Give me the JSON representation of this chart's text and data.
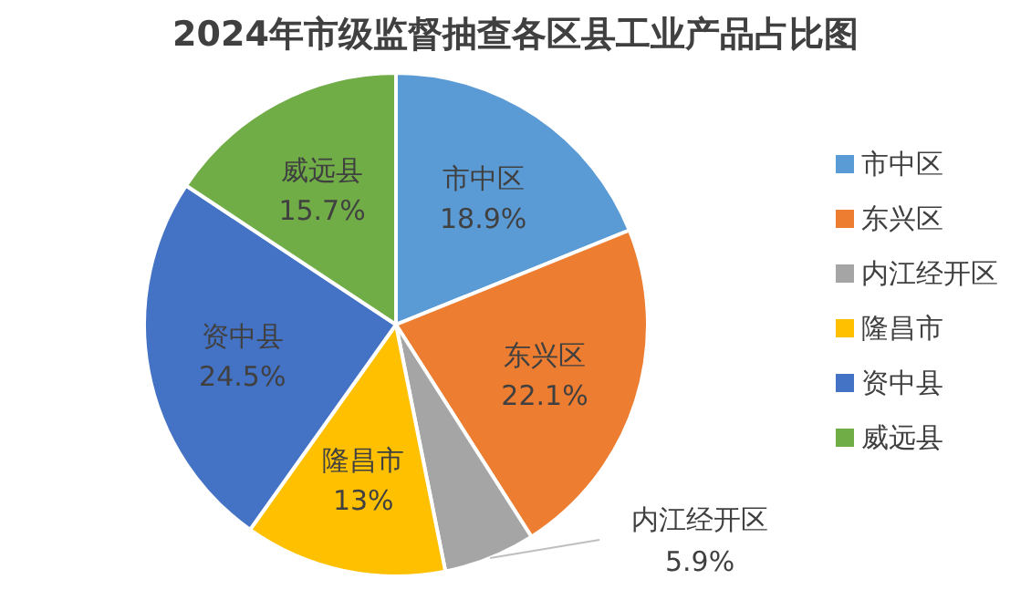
{
  "chart_data": {
    "type": "pie",
    "title": "2024年市级监督抽查各区县工业产品占比图",
    "categories": [
      "市中区",
      "东兴区",
      "内江经开区",
      "隆昌市",
      "资中县",
      "威远县"
    ],
    "values": [
      18.9,
      22.1,
      5.9,
      13,
      24.5,
      15.7
    ],
    "value_labels": [
      "18.9%",
      "22.1%",
      "5.9%",
      "13%",
      "24.5%",
      "15.7%"
    ],
    "colors": [
      "#5b9bd5",
      "#ed7d31",
      "#a5a5a5",
      "#ffc000",
      "#4472c4",
      "#70ad47"
    ],
    "legend": "right"
  }
}
